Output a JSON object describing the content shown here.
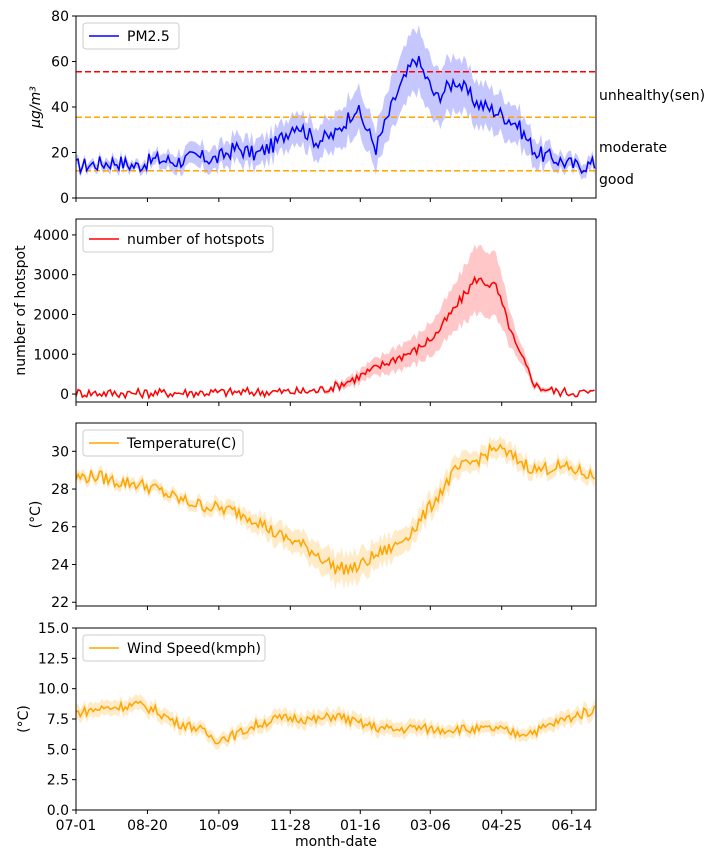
{
  "figure": {
    "xlabel": "month-date",
    "xticks": [
      "07-01",
      "08-20",
      "10-09",
      "11-28",
      "01-16",
      "03-06",
      "04-25",
      "06-14"
    ]
  },
  "chart_data": [
    {
      "type": "line",
      "ylabel": "µg/m³",
      "ylim": [
        0,
        80
      ],
      "yticks": [
        "0",
        "20",
        "40",
        "60",
        "80"
      ],
      "legend": {
        "label": "PM2.5",
        "placement": "top-left"
      },
      "color": "#0000ff",
      "thresholds": [
        {
          "value": 55.5,
          "color": "#ff0000",
          "label": "unhealthy(sen)"
        },
        {
          "value": 35.5,
          "color": "#ffa500",
          "label": "moderate"
        },
        {
          "value": 12,
          "color": "#ffa500",
          "label": "good"
        }
      ],
      "x_days": [
        0,
        14,
        28,
        42,
        56,
        70,
        84,
        98,
        112,
        126,
        140,
        154,
        168,
        182,
        196,
        210,
        224,
        238,
        252,
        266,
        280,
        294,
        308,
        322,
        336,
        350,
        364
      ],
      "values": [
        14,
        15,
        16,
        14,
        17,
        16,
        18,
        17,
        22,
        19,
        24,
        33,
        25,
        28,
        40,
        22,
        45,
        62,
        44,
        52,
        42,
        38,
        33,
        20,
        17,
        14,
        15
      ],
      "band": [
        2,
        2,
        3,
        2,
        3,
        4,
        5,
        5,
        6,
        6,
        6,
        7,
        7,
        8,
        10,
        9,
        12,
        14,
        12,
        12,
        10,
        9,
        8,
        6,
        4,
        3,
        3
      ]
    },
    {
      "type": "line",
      "ylabel": "number of hotspot",
      "ylim": [
        -200,
        4400
      ],
      "yticks": [
        "0",
        "1000",
        "2000",
        "3000",
        "4000"
      ],
      "legend": {
        "label": "number of hotspots",
        "placement": "top-left"
      },
      "color": "#ff0000",
      "x_days": [
        0,
        14,
        28,
        42,
        56,
        70,
        84,
        98,
        112,
        126,
        140,
        154,
        168,
        182,
        196,
        210,
        224,
        238,
        252,
        266,
        280,
        294,
        308,
        322,
        336,
        350,
        364
      ],
      "values": [
        30,
        25,
        20,
        20,
        25,
        30,
        35,
        40,
        45,
        50,
        55,
        60,
        80,
        200,
        400,
        650,
        900,
        1100,
        1500,
        2200,
        2900,
        2700,
        1200,
        200,
        60,
        40,
        30
      ],
      "band": [
        10,
        10,
        10,
        10,
        10,
        10,
        10,
        15,
        15,
        15,
        20,
        20,
        30,
        80,
        150,
        220,
        300,
        350,
        450,
        600,
        850,
        800,
        300,
        80,
        30,
        20,
        15
      ]
    },
    {
      "type": "line",
      "ylabel": "(°C)",
      "ylim": [
        21.8,
        31.5
      ],
      "yticks": [
        "22",
        "24",
        "26",
        "28",
        "30"
      ],
      "legend": {
        "label": "Temperature(C)",
        "placement": "top-left"
      },
      "color": "#ffa500",
      "x_days": [
        0,
        14,
        28,
        42,
        56,
        70,
        84,
        98,
        112,
        126,
        140,
        154,
        168,
        182,
        196,
        210,
        224,
        238,
        252,
        266,
        280,
        294,
        308,
        322,
        336,
        350,
        364
      ],
      "values": [
        28.6,
        28.7,
        28.4,
        28.3,
        28.0,
        27.5,
        27.2,
        27.0,
        26.8,
        26.4,
        25.6,
        25.2,
        24.6,
        23.8,
        23.8,
        24.5,
        25.0,
        26.0,
        27.5,
        29.0,
        29.5,
        30.2,
        29.6,
        29.0,
        29.2,
        29.0,
        28.6
      ],
      "band": [
        0.3,
        0.3,
        0.3,
        0.3,
        0.3,
        0.3,
        0.3,
        0.4,
        0.4,
        0.5,
        0.6,
        0.6,
        0.7,
        0.8,
        0.8,
        0.7,
        0.7,
        0.6,
        0.6,
        0.6,
        0.5,
        0.5,
        0.5,
        0.4,
        0.4,
        0.4,
        0.4
      ]
    },
    {
      "type": "line",
      "ylabel": "(°C)",
      "ylim": [
        0,
        15
      ],
      "yticks": [
        "0.0",
        "2.5",
        "5.0",
        "7.5",
        "10.0",
        "12.5",
        "15.0"
      ],
      "legend": {
        "label": "Wind Speed(kmph)",
        "placement": "top-left"
      },
      "color": "#ffa500",
      "x_days": [
        0,
        14,
        28,
        42,
        56,
        70,
        84,
        98,
        112,
        126,
        140,
        154,
        168,
        182,
        196,
        210,
        224,
        238,
        252,
        266,
        280,
        294,
        308,
        322,
        336,
        350,
        364
      ],
      "values": [
        8.0,
        8.3,
        8.5,
        8.7,
        8.2,
        7.2,
        6.8,
        5.8,
        6.2,
        7.0,
        7.5,
        7.6,
        7.4,
        7.8,
        7.2,
        6.8,
        6.6,
        6.8,
        6.6,
        6.7,
        6.6,
        6.7,
        6.3,
        6.5,
        7.2,
        7.8,
        8.3
      ],
      "band": [
        0.6,
        0.6,
        0.6,
        0.6,
        0.6,
        0.6,
        0.5,
        0.5,
        0.5,
        0.6,
        0.6,
        0.6,
        0.6,
        0.6,
        0.6,
        0.6,
        0.6,
        0.6,
        0.5,
        0.5,
        0.5,
        0.5,
        0.5,
        0.5,
        0.6,
        0.6,
        0.6
      ]
    }
  ]
}
